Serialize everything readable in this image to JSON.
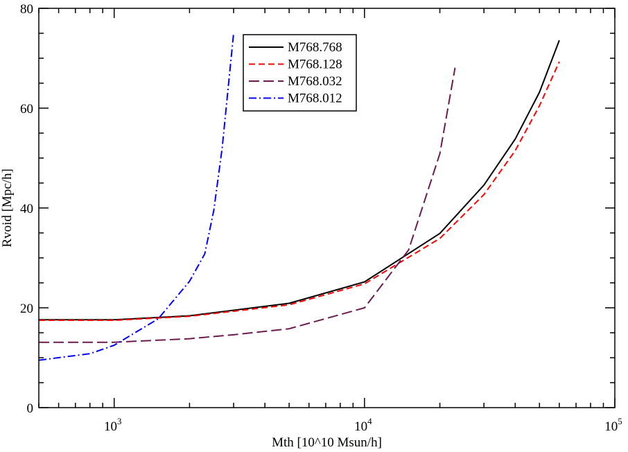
{
  "chart_data": {
    "type": "line",
    "title": "",
    "xlabel": "Mth [10^10 Msun/h]",
    "ylabel": "Rvoid [Mpc/h]",
    "xscale": "log",
    "xlim": [
      500,
      100000
    ],
    "ylim": [
      0,
      80
    ],
    "grid": false,
    "legend_position": "top-center",
    "x_tick_labels": [
      {
        "value": 1000,
        "base": "10",
        "exp": "3"
      },
      {
        "value": 10000,
        "base": "10",
        "exp": "4"
      },
      {
        "value": 100000,
        "base": "10",
        "exp": "5"
      }
    ],
    "y_ticks": [
      0,
      20,
      40,
      60,
      80
    ],
    "series": [
      {
        "name": "M768.768",
        "color": "#000000",
        "dash": "solid",
        "x": [
          500,
          1000,
          2000,
          5000,
          10000,
          20000,
          30000,
          40000,
          50000,
          60000
        ],
        "y": [
          17.6,
          17.6,
          18.4,
          20.9,
          25.2,
          34.9,
          44.6,
          53.8,
          63.2,
          73.6
        ]
      },
      {
        "name": "M768.128",
        "color": "#ff0000",
        "dash": "dashed",
        "x": [
          500,
          1000,
          2000,
          5000,
          10000,
          20000,
          30000,
          40000,
          50000,
          60000
        ],
        "y": [
          17.5,
          17.5,
          18.3,
          20.6,
          24.8,
          33.9,
          42.7,
          51.5,
          60.5,
          69.3
        ]
      },
      {
        "name": "M768.032",
        "color": "#6b1a4f",
        "dash": "long-dash",
        "x": [
          500,
          1000,
          2000,
          3000,
          5000,
          10000,
          15000,
          20000,
          23000
        ],
        "y": [
          13.1,
          13.1,
          13.8,
          14.6,
          15.8,
          20.0,
          31.6,
          50.9,
          68.1
        ]
      },
      {
        "name": "M768.012",
        "color": "#0000ff",
        "dash": "dash-dot",
        "x": [
          500,
          800,
          1000,
          1500,
          2000,
          2300,
          2500,
          2700,
          3000
        ],
        "y": [
          9.5,
          10.8,
          12.5,
          17.8,
          25.3,
          30.8,
          39.5,
          52.0,
          75.0
        ]
      }
    ]
  }
}
